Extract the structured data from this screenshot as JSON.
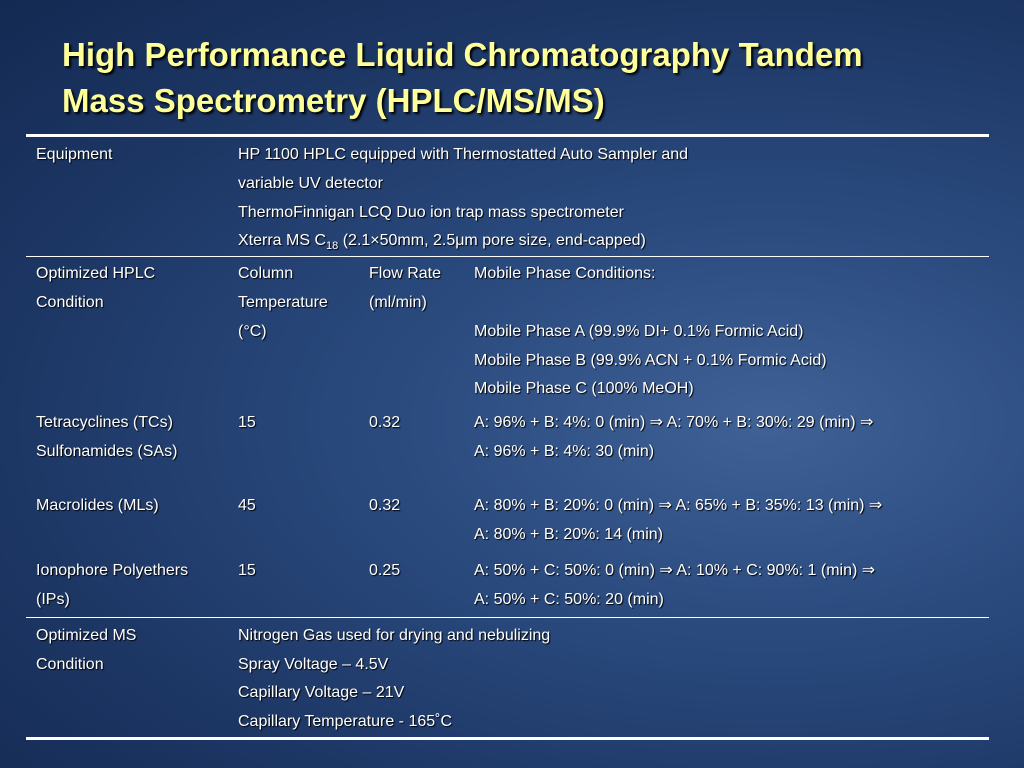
{
  "title": {
    "lines": [
      "High Performance Liquid Chromatography Tandem",
      "Mass Spectrometry (HPLC/MS/MS)"
    ]
  },
  "equipment": {
    "label": "Equipment",
    "lines": [
      "HP 1100 HPLC equipped with Thermostatted Auto Sampler and",
      "variable UV detector",
      "ThermoFinnigan LCQ Duo ion trap mass spectrometer"
    ],
    "column": {
      "text": "Xterra MS C",
      "sub": "18",
      "rest": " (2.1×50mm, 2.5μm pore size, end-capped)"
    }
  },
  "hplc": {
    "label": [
      "Optimized HPLC",
      "Condition"
    ],
    "temperature_header": [
      "Column",
      "Temperature",
      "(°C)"
    ],
    "flow_header": [
      "Flow Rate",
      "(ml/min)"
    ],
    "mobile_header": "Mobile Phase Conditions:",
    "phases": [
      "Mobile Phase A (99.9% DI+ 0.1% Formic Acid)",
      "Mobile Phase B (99.9% ACN + 0.1% Formic Acid)",
      "Mobile Phase C (100% MeOH)"
    ],
    "rows": [
      {
        "name": [
          "Tetracyclines (TCs)",
          "Sulfonamides (SAs)"
        ],
        "temperature": "15",
        "flow": "0.32",
        "gradient": [
          "A: 96% + B: 4%: 0 (min) ⇒ A: 70% + B: 30%: 29 (min) ⇒",
          "A: 96% + B: 4%: 30 (min)"
        ]
      },
      {
        "name": [
          "Macrolides (MLs)"
        ],
        "temperature": "45",
        "flow": "0.32",
        "gradient": [
          "A: 80% + B: 20%: 0 (min) ⇒ A: 65% + B: 35%: 13 (min) ⇒",
          "A: 80% + B: 20%: 14 (min)"
        ]
      },
      {
        "name": [
          "Ionophore Polyethers",
          "(IPs)"
        ],
        "temperature": "15",
        "flow": "0.25",
        "gradient": [
          "A: 50% + C: 50%: 0 (min) ⇒ A: 10% + C: 90%: 1 (min) ⇒",
          "A: 50% + C: 50%: 20 (min)"
        ]
      }
    ]
  },
  "ms": {
    "label": [
      "Optimized MS",
      "Condition"
    ],
    "lines": [
      "Nitrogen Gas used for drying and nebulizing",
      "Spray Voltage – 4.5V",
      "Capillary Voltage – 21V",
      "Capillary Temperature - 165˚C"
    ]
  }
}
